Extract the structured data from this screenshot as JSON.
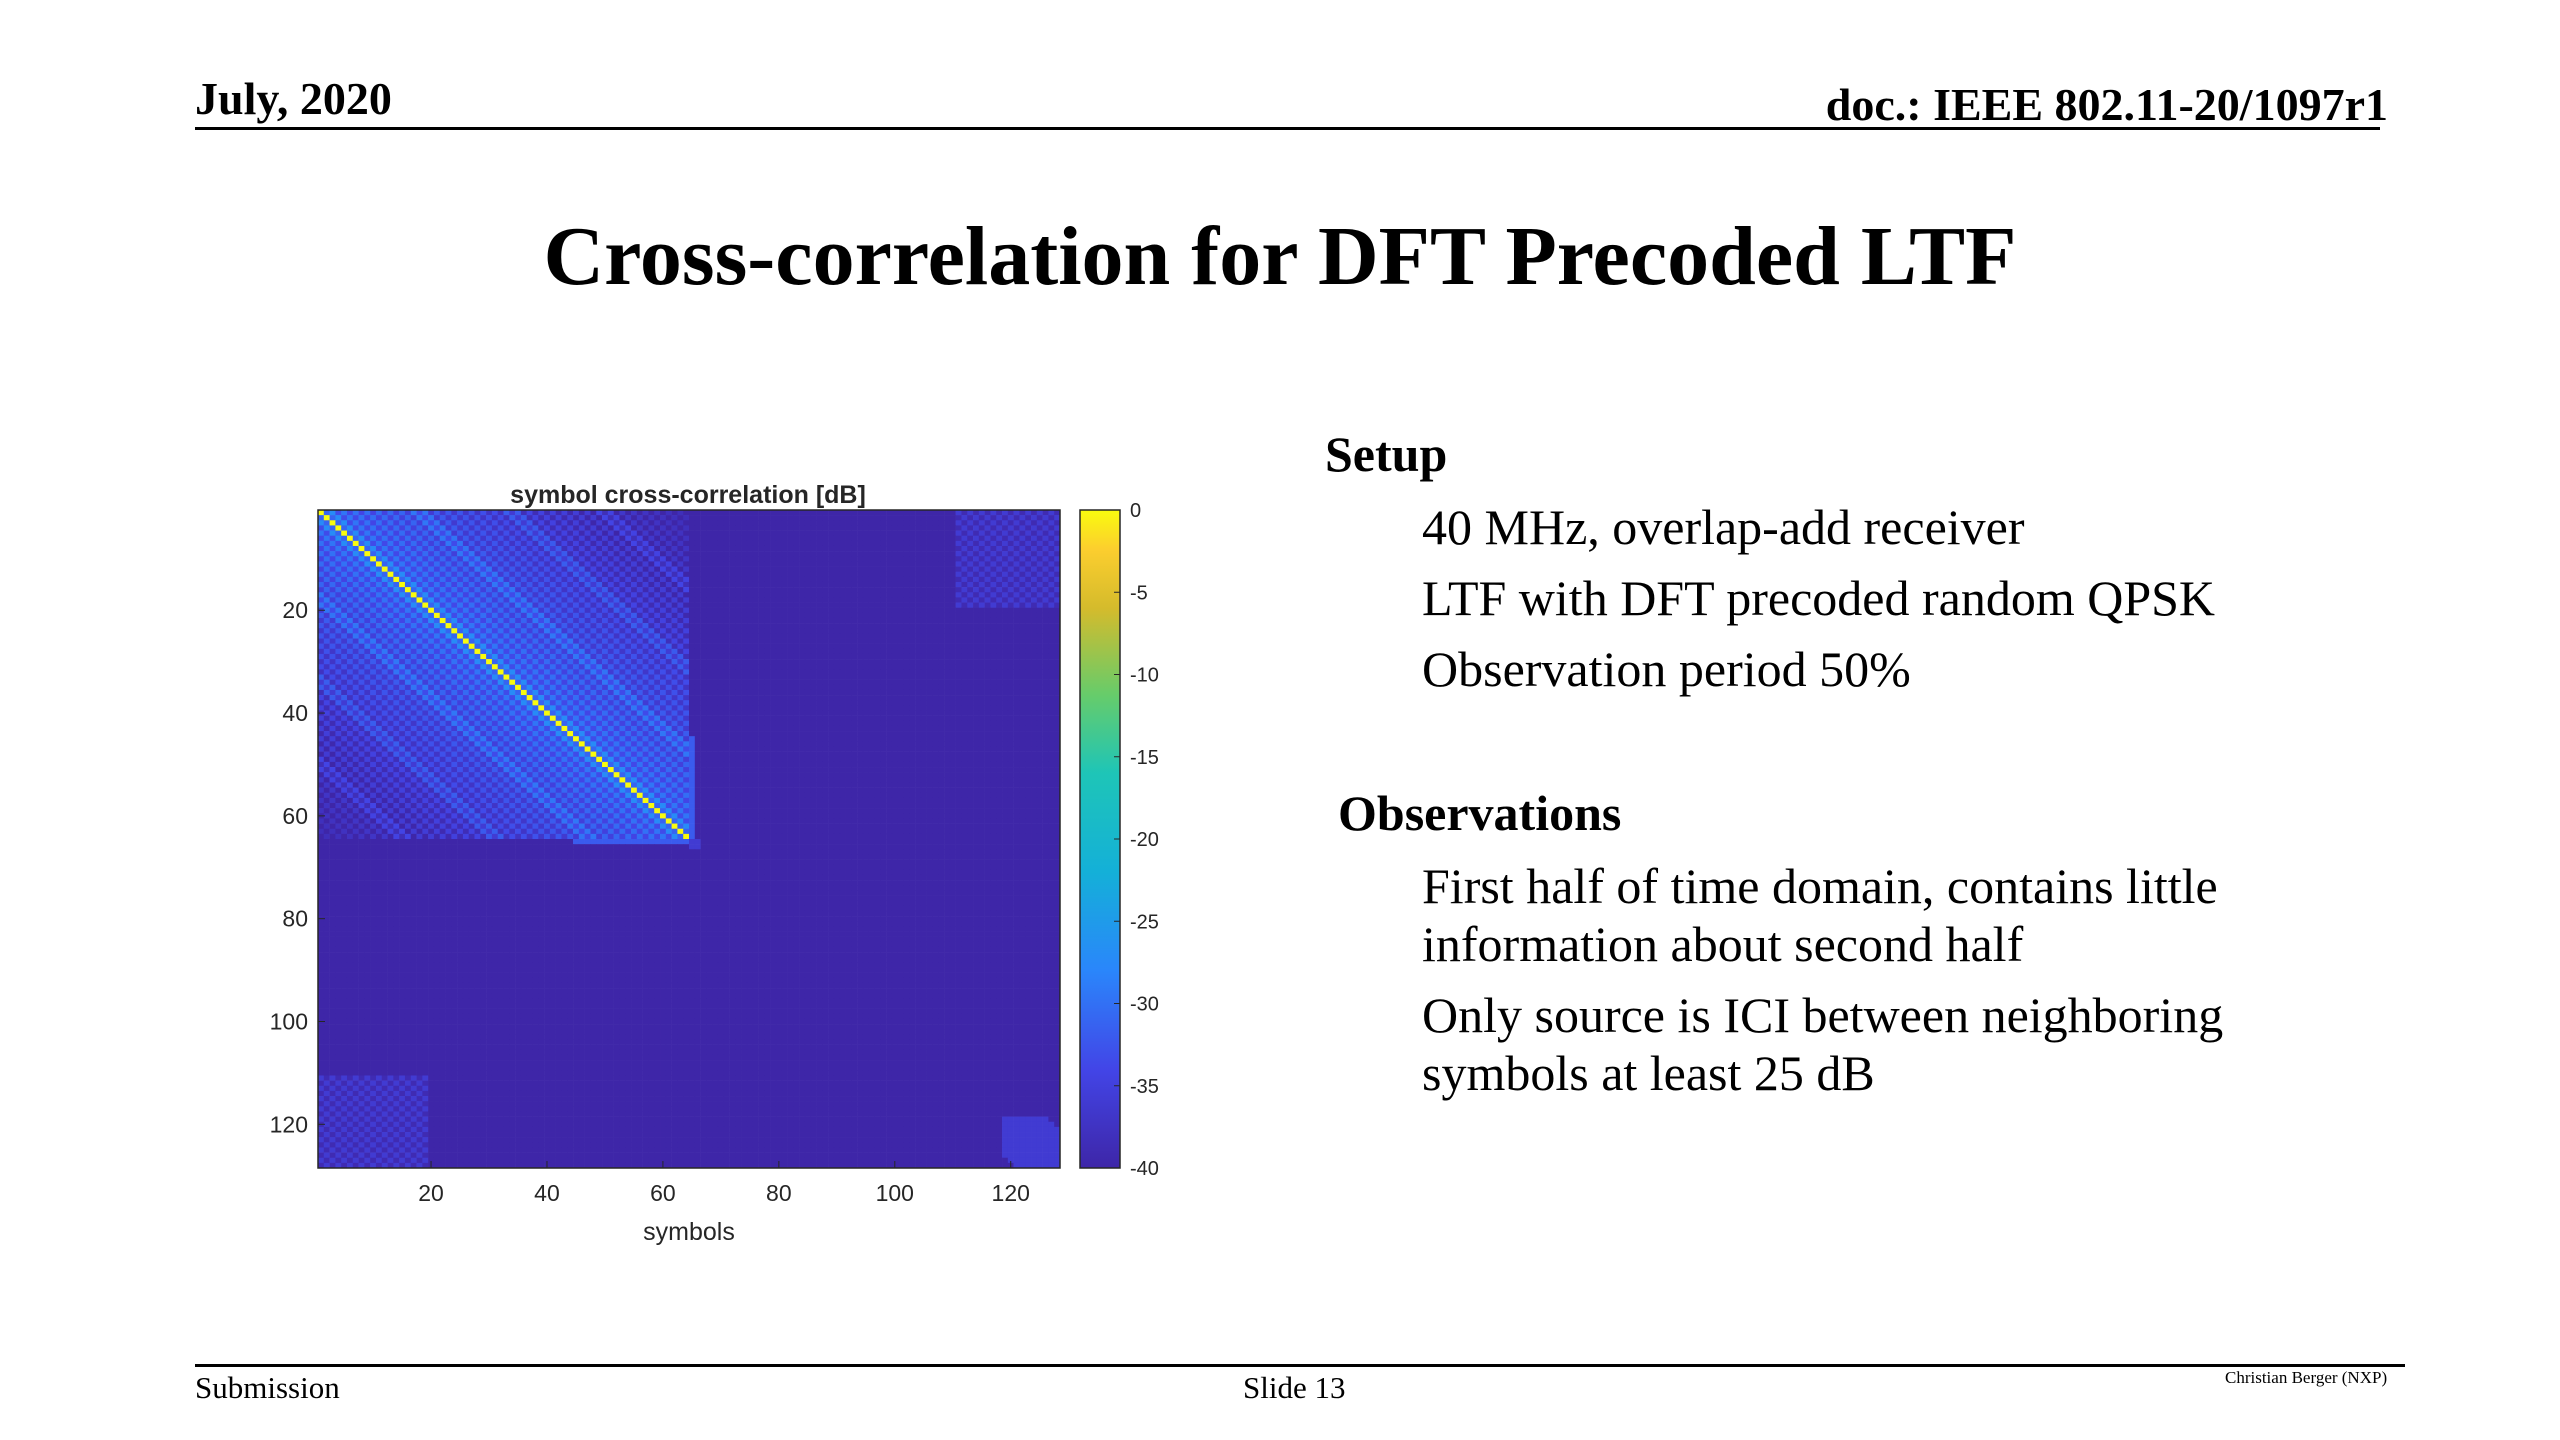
{
  "header": {
    "date": "July, 2020",
    "doc": "doc.: IEEE 802.11-20/1097r1"
  },
  "slide_title": "Cross-correlation for DFT Precoded LTF",
  "setup": {
    "heading": "Setup",
    "items": [
      "40 MHz, overlap-add receiver",
      "LTF with DFT precoded random QPSK",
      "Observation period 50%"
    ]
  },
  "observations": {
    "heading": "Observations",
    "items": [
      "First half of time domain, contains little information about second half",
      "Only source is ICI between neighboring symbols at least 25 dB"
    ]
  },
  "footer": {
    "submission": "Submission",
    "slide": "Slide 13",
    "author": "Christian Berger (NXP)"
  },
  "chart_data": {
    "type": "heatmap",
    "title": "symbol cross-correlation [dB]",
    "xlabel": "symbols",
    "ylabel": "",
    "x_range": [
      1,
      128
    ],
    "y_range": [
      1,
      128
    ],
    "x_ticks": [
      20,
      40,
      60,
      80,
      100,
      120
    ],
    "y_ticks": [
      20,
      40,
      60,
      80,
      100,
      120
    ],
    "colorbar": {
      "min": -40,
      "max": 0,
      "ticks": [
        0,
        -5,
        -10,
        -15,
        -20,
        -25,
        -30,
        -35,
        -40
      ],
      "colormap": "parula"
    },
    "description_values": {
      "diagonal_first_half_db": 0,
      "off_diagonal_first_half_db": [
        -28,
        -35
      ],
      "second_half_floor_db": -40,
      "first_half_end_symbol": 64
    },
    "colors": {
      "low": "#3e26a8",
      "mid": "#1ec5b7",
      "high": "#f9fb0e"
    }
  }
}
